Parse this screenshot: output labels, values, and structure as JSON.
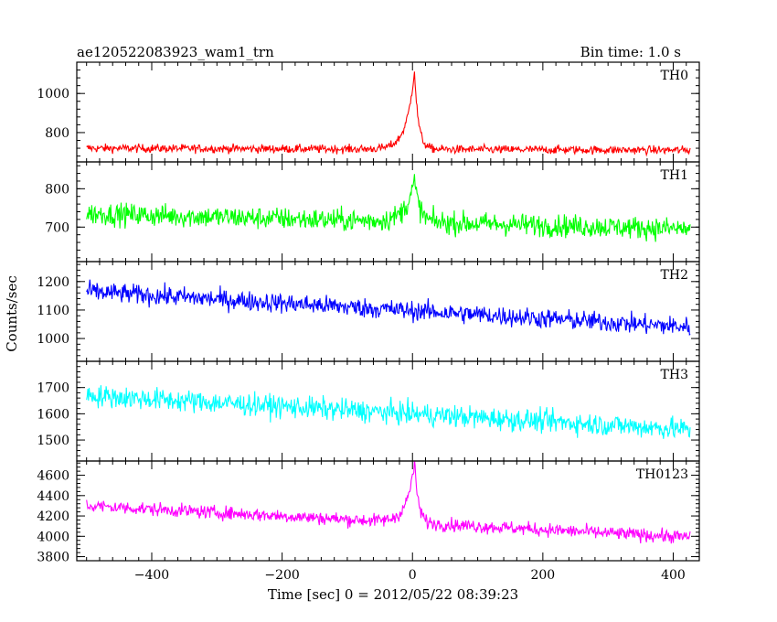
{
  "header": {
    "title": "ae120522083923_wam1_trn",
    "bin_time": "Bin time: 1.0 s"
  },
  "chart_data": {
    "type": "line",
    "title": "ae120522083923_wam1_trn",
    "subtitle": "Bin time: 1.0 s",
    "xlabel": "Time [sec] 0 = 2012/05/22 08:39:23",
    "ylabel": "Counts/sec",
    "xlim": [
      -515,
      440
    ],
    "x_ticks": [
      -400,
      -200,
      0,
      200,
      400
    ],
    "x_range": [
      -500,
      426
    ],
    "bin_size": 1.0,
    "panels": [
      {
        "name": "TH0",
        "color": "#ff0000",
        "ylim": [
          650,
          1160
        ],
        "y_ticks": [
          800,
          1000
        ],
        "baseline_start": 720,
        "baseline_end": 710,
        "noise_amplitude": 28,
        "burst": {
          "peak_time": 3,
          "peak_value": 1120,
          "rise_tau": 12,
          "decay_tau": 6
        }
      },
      {
        "name": "TH1",
        "color": "#00ff00",
        "ylim": [
          610,
          870
        ],
        "y_ticks": [
          700,
          800
        ],
        "baseline_start": 735,
        "baseline_end": 695,
        "noise_amplitude": 38,
        "burst": {
          "peak_time": 3,
          "peak_value": 820,
          "rise_tau": 14,
          "decay_tau": 8
        }
      },
      {
        "name": "TH2",
        "color": "#0000ff",
        "ylim": [
          920,
          1270
        ],
        "y_ticks": [
          1000,
          1100,
          1200
        ],
        "baseline_start": 1165,
        "baseline_end": 1040,
        "noise_amplitude": 45,
        "burst": null
      },
      {
        "name": "TH3",
        "color": "#00ffff",
        "ylim": [
          1420,
          1800
        ],
        "y_ticks": [
          1500,
          1600,
          1700
        ],
        "baseline_start": 1670,
        "baseline_end": 1540,
        "noise_amplitude": 55,
        "burst": null
      },
      {
        "name": "TH0123",
        "color": "#ff00ff",
        "ylim": [
          3760,
          4740
        ],
        "y_ticks": [
          3800,
          4000,
          4200,
          4400,
          4600
        ],
        "baseline_start": 4300,
        "baseline_end": 3990,
        "noise_amplitude": 85,
        "burst": {
          "peak_time": 3,
          "peak_value": 4720,
          "rise_tau": 12,
          "decay_tau": 6
        }
      }
    ]
  }
}
